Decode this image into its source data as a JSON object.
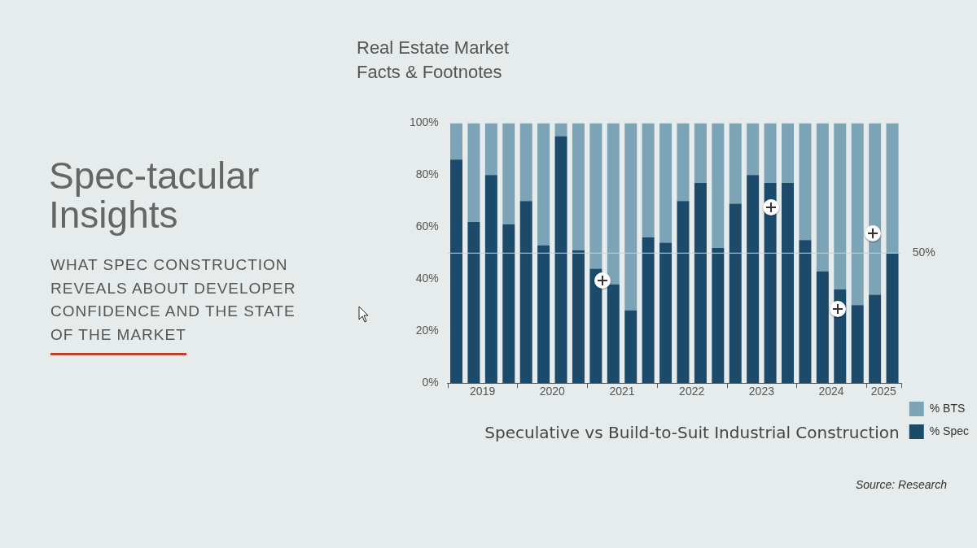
{
  "chart_data": {
    "type": "bar",
    "title": "Speculative vs Build-to-Suit Industrial Construction",
    "x": [
      2019.125,
      2019.375,
      2019.625,
      2019.875,
      2020.125,
      2020.375,
      2020.625,
      2020.875,
      2021.125,
      2021.375,
      2021.625,
      2021.875,
      2022.125,
      2022.375,
      2022.625,
      2022.875,
      2023.125,
      2023.375,
      2023.625,
      2023.875,
      2024.125,
      2024.375,
      2024.625,
      2024.875,
      2025.125,
      2025.375
    ],
    "stacked": true,
    "series": [
      {
        "name": "% Spec",
        "color": "#1c4a6b",
        "values": [
          86,
          62,
          80,
          61,
          70,
          53,
          95,
          51,
          44,
          38,
          28,
          56,
          54,
          70,
          77,
          52,
          69,
          80,
          77,
          77,
          55,
          43,
          36,
          30,
          34,
          50
        ]
      },
      {
        "name": "% BTS",
        "color": "#7ca3b6",
        "values": [
          14,
          38,
          20,
          39,
          30,
          47,
          5,
          49,
          56,
          62,
          72,
          44,
          46,
          30,
          23,
          48,
          31,
          20,
          23,
          23,
          45,
          57,
          64,
          70,
          66,
          50
        ]
      }
    ],
    "xlim": [
      2019,
      2025.5
    ],
    "xticks": [
      {
        "value": 2019,
        "label": null
      },
      {
        "value": 2019.5,
        "label": "2019"
      },
      {
        "value": 2020,
        "label": null
      },
      {
        "value": 2020.5,
        "label": "2020"
      },
      {
        "value": 2021,
        "label": null
      },
      {
        "value": 2021.5,
        "label": "2021"
      },
      {
        "value": 2022,
        "label": null
      },
      {
        "value": 2022.5,
        "label": "2022"
      },
      {
        "value": 2023,
        "label": null
      },
      {
        "value": 2023.5,
        "label": "2023"
      },
      {
        "value": 2024,
        "label": null
      },
      {
        "value": 2024.5,
        "label": "2024"
      },
      {
        "value": 2025,
        "label": null
      },
      {
        "value": 2025.25,
        "label": "2025"
      },
      {
        "value": 2025.5,
        "label": null
      }
    ],
    "ylim": [
      0,
      100
    ],
    "yticks": [
      {
        "value": 0,
        "label": "0%"
      },
      {
        "value": 20,
        "label": "20%"
      },
      {
        "value": 40,
        "label": "40%"
      },
      {
        "value": 60,
        "label": "60%"
      },
      {
        "value": 80,
        "label": "80%"
      },
      {
        "value": 100,
        "label": "100%"
      }
    ],
    "ref_lines": [
      {
        "axis": "y",
        "value": 50,
        "label": "50%",
        "color": "#c9d3d8"
      }
    ],
    "grid": false,
    "legend": "bottom right",
    "annotations": [
      "Real Estate Market Facts & Footnotes",
      "Spec-tacular Insights",
      "WHAT SPEC CONSTRUCTION REVEALS ABOUT DEVELOPER CONFIDENCE AND THE STATE OF THE MARKET",
      "Source: Research"
    ]
  }
}
